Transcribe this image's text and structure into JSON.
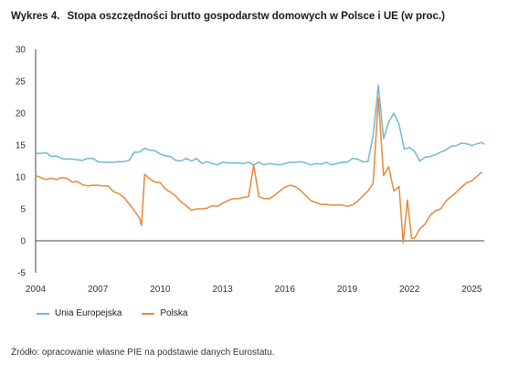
{
  "figure": {
    "number": "Wykres 4.",
    "title": "Stopa oszczędności brutto gospodarstw domowych w Polsce i UE (w proc.)",
    "source": "Źródło: opracowanie własne PIE na podstawie danych Eurostatu."
  },
  "chart_data": {
    "type": "line",
    "xlim": [
      2004.0,
      2025.6
    ],
    "ylim": [
      -5,
      30
    ],
    "x_ticks": [
      "2004",
      "2007",
      "2010",
      "2013",
      "2016",
      "2019",
      "2022",
      "2025"
    ],
    "y_ticks": [
      "-5",
      "0",
      "5",
      "10",
      "15",
      "20",
      "25",
      "30"
    ],
    "grid": false,
    "legend": "bottom-left",
    "series": [
      {
        "name": "Unia Europejska",
        "color": "#6fb8d8",
        "points": [
          [
            2004.0,
            13.7
          ],
          [
            2004.25,
            13.7
          ],
          [
            2004.5,
            13.8
          ],
          [
            2004.75,
            13.2
          ],
          [
            2005.0,
            13.3
          ],
          [
            2005.25,
            12.9
          ],
          [
            2005.5,
            12.8
          ],
          [
            2005.75,
            12.8
          ],
          [
            2006.0,
            12.7
          ],
          [
            2006.25,
            12.6
          ],
          [
            2006.5,
            12.9
          ],
          [
            2006.75,
            12.9
          ],
          [
            2007.0,
            12.4
          ],
          [
            2007.25,
            12.3
          ],
          [
            2007.5,
            12.3
          ],
          [
            2007.75,
            12.3
          ],
          [
            2008.0,
            12.4
          ],
          [
            2008.25,
            12.4
          ],
          [
            2008.5,
            12.6
          ],
          [
            2008.75,
            13.9
          ],
          [
            2009.0,
            13.9
          ],
          [
            2009.25,
            14.5
          ],
          [
            2009.5,
            14.2
          ],
          [
            2009.75,
            14.1
          ],
          [
            2010.0,
            13.6
          ],
          [
            2010.25,
            13.3
          ],
          [
            2010.5,
            13.2
          ],
          [
            2010.75,
            12.6
          ],
          [
            2011.0,
            12.5
          ],
          [
            2011.25,
            12.9
          ],
          [
            2011.5,
            12.5
          ],
          [
            2011.75,
            12.9
          ],
          [
            2012.0,
            12.1
          ],
          [
            2012.25,
            12.4
          ],
          [
            2012.5,
            12.1
          ],
          [
            2012.75,
            11.9
          ],
          [
            2013.0,
            12.3
          ],
          [
            2013.25,
            12.2
          ],
          [
            2013.5,
            12.2
          ],
          [
            2013.75,
            12.2
          ],
          [
            2014.0,
            12.1
          ],
          [
            2014.25,
            12.3
          ],
          [
            2014.5,
            11.9
          ],
          [
            2014.75,
            12.3
          ],
          [
            2015.0,
            11.9
          ],
          [
            2015.25,
            12.1
          ],
          [
            2015.5,
            12.0
          ],
          [
            2015.75,
            11.9
          ],
          [
            2016.0,
            12.1
          ],
          [
            2016.25,
            12.3
          ],
          [
            2016.5,
            12.3
          ],
          [
            2016.75,
            12.4
          ],
          [
            2017.0,
            12.2
          ],
          [
            2017.25,
            11.9
          ],
          [
            2017.5,
            12.1
          ],
          [
            2017.75,
            12.0
          ],
          [
            2018.0,
            12.3
          ],
          [
            2018.25,
            11.9
          ],
          [
            2018.5,
            12.1
          ],
          [
            2018.75,
            12.3
          ],
          [
            2019.0,
            12.3
          ],
          [
            2019.25,
            12.9
          ],
          [
            2019.5,
            12.8
          ],
          [
            2019.75,
            12.4
          ],
          [
            2020.0,
            12.4
          ],
          [
            2020.25,
            16.5
          ],
          [
            2020.5,
            24.4
          ],
          [
            2020.75,
            16.0
          ],
          [
            2021.0,
            18.6
          ],
          [
            2021.25,
            20.0
          ],
          [
            2021.5,
            18.2
          ],
          [
            2021.75,
            14.4
          ],
          [
            2022.0,
            14.6
          ],
          [
            2022.25,
            14.0
          ],
          [
            2022.5,
            12.5
          ],
          [
            2022.75,
            13.1
          ],
          [
            2023.0,
            13.2
          ],
          [
            2023.25,
            13.5
          ],
          [
            2023.5,
            13.9
          ],
          [
            2023.75,
            14.2
          ],
          [
            2024.0,
            14.8
          ],
          [
            2024.25,
            14.9
          ],
          [
            2024.5,
            15.3
          ],
          [
            2024.75,
            15.2
          ],
          [
            2025.0,
            14.9
          ],
          [
            2025.25,
            15.2
          ],
          [
            2025.5,
            15.4
          ],
          [
            2025.6,
            15.1
          ]
        ]
      },
      {
        "name": "Polska",
        "color": "#e8883a",
        "points": [
          [
            2004.0,
            10.2
          ],
          [
            2004.25,
            9.9
          ],
          [
            2004.5,
            9.6
          ],
          [
            2004.75,
            9.8
          ],
          [
            2005.0,
            9.6
          ],
          [
            2005.25,
            9.9
          ],
          [
            2005.5,
            9.8
          ],
          [
            2005.75,
            9.2
          ],
          [
            2006.0,
            9.3
          ],
          [
            2006.25,
            8.8
          ],
          [
            2006.5,
            8.6
          ],
          [
            2006.75,
            8.7
          ],
          [
            2007.0,
            8.7
          ],
          [
            2007.25,
            8.6
          ],
          [
            2007.5,
            8.6
          ],
          [
            2007.75,
            7.7
          ],
          [
            2008.0,
            7.4
          ],
          [
            2008.25,
            6.8
          ],
          [
            2008.5,
            5.8
          ],
          [
            2008.75,
            4.7
          ],
          [
            2009.0,
            3.6
          ],
          [
            2009.1,
            2.4
          ],
          [
            2009.25,
            10.4
          ],
          [
            2009.5,
            9.7
          ],
          [
            2009.75,
            9.2
          ],
          [
            2010.0,
            9.1
          ],
          [
            2010.25,
            8.1
          ],
          [
            2010.5,
            7.6
          ],
          [
            2010.75,
            7.0
          ],
          [
            2011.0,
            6.1
          ],
          [
            2011.25,
            5.5
          ],
          [
            2011.5,
            4.8
          ],
          [
            2011.75,
            5.0
          ],
          [
            2012.0,
            5.0
          ],
          [
            2012.25,
            5.1
          ],
          [
            2012.5,
            5.5
          ],
          [
            2012.75,
            5.4
          ],
          [
            2013.0,
            5.9
          ],
          [
            2013.25,
            6.3
          ],
          [
            2013.5,
            6.6
          ],
          [
            2013.75,
            6.6
          ],
          [
            2014.0,
            6.8
          ],
          [
            2014.25,
            6.9
          ],
          [
            2014.5,
            11.9
          ],
          [
            2014.75,
            6.9
          ],
          [
            2015.0,
            6.6
          ],
          [
            2015.25,
            6.6
          ],
          [
            2015.5,
            7.1
          ],
          [
            2015.75,
            7.8
          ],
          [
            2016.0,
            8.4
          ],
          [
            2016.25,
            8.7
          ],
          [
            2016.5,
            8.5
          ],
          [
            2016.75,
            7.9
          ],
          [
            2017.0,
            7.1
          ],
          [
            2017.25,
            6.3
          ],
          [
            2017.5,
            6.0
          ],
          [
            2017.75,
            5.7
          ],
          [
            2018.0,
            5.7
          ],
          [
            2018.25,
            5.6
          ],
          [
            2018.5,
            5.6
          ],
          [
            2018.75,
            5.6
          ],
          [
            2019.0,
            5.4
          ],
          [
            2019.25,
            5.6
          ],
          [
            2019.5,
            6.2
          ],
          [
            2019.75,
            7.0
          ],
          [
            2020.0,
            7.8
          ],
          [
            2020.25,
            9.0
          ],
          [
            2020.5,
            22.4
          ],
          [
            2020.75,
            10.2
          ],
          [
            2021.0,
            11.6
          ],
          [
            2021.25,
            7.8
          ],
          [
            2021.5,
            8.5
          ],
          [
            2021.7,
            -0.3
          ],
          [
            2021.9,
            6.4
          ],
          [
            2022.1,
            0.4
          ],
          [
            2022.25,
            0.4
          ],
          [
            2022.5,
            1.9
          ],
          [
            2022.75,
            2.6
          ],
          [
            2023.0,
            4.0
          ],
          [
            2023.25,
            4.7
          ],
          [
            2023.5,
            5.0
          ],
          [
            2023.75,
            6.2
          ],
          [
            2024.0,
            6.9
          ],
          [
            2024.25,
            7.6
          ],
          [
            2024.5,
            8.4
          ],
          [
            2024.75,
            9.1
          ],
          [
            2025.0,
            9.4
          ],
          [
            2025.25,
            10.1
          ],
          [
            2025.5,
            10.8
          ]
        ]
      }
    ]
  }
}
